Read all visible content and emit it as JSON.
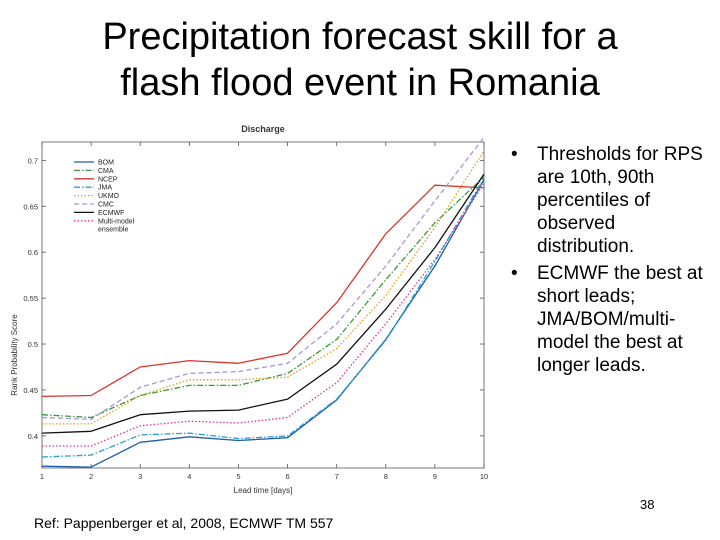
{
  "slide": {
    "title_line1": "Precipitation forecast skill for a",
    "title_line2": "flash flood event in Romania",
    "bullets": [
      "Thresholds for RPS are 10th, 90th percentiles of observed distribution.",
      "ECMWF the best at short leads; JMA/BOM/multi-model the best at longer leads."
    ],
    "bullet_symbol": "•",
    "page_number": "38",
    "reference": "Ref: Pappenberger et al, 2008, ECMWF TM 557"
  },
  "chart_data": {
    "type": "line",
    "title": "Discharge",
    "xlabel": "Lead time [days]",
    "ylabel": "Rank Probability Score",
    "x": [
      1,
      2,
      3,
      4,
      5,
      6,
      7,
      8,
      9,
      10
    ],
    "xlim": [
      1,
      10
    ],
    "ylim": [
      0.365,
      0.72
    ],
    "yticks": [
      0.4,
      0.45,
      0.5,
      0.55,
      0.6,
      0.65,
      0.7
    ],
    "ytick_labels": [
      "0.4",
      "0.45",
      "0.5",
      "0.55",
      "0.6",
      "0.65",
      "0.7"
    ],
    "xtick_labels": [
      "1",
      "2",
      "3",
      "4",
      "5",
      "6",
      "7",
      "8",
      "9",
      "10"
    ],
    "legend_position": "top-left",
    "grid": false,
    "series": [
      {
        "name": "BOM",
        "color": "#1f5fa8",
        "dash": "solid",
        "values": [
          0.367,
          0.366,
          0.393,
          0.399,
          0.395,
          0.398,
          0.439,
          0.505,
          0.585,
          0.679
        ]
      },
      {
        "name": "CMA",
        "color": "#3a9a3a",
        "dash": "dashdot",
        "values": [
          0.423,
          0.42,
          0.444,
          0.455,
          0.455,
          0.468,
          0.505,
          0.57,
          0.632,
          0.682
        ]
      },
      {
        "name": "NCEP",
        "color": "#d9342b",
        "dash": "solid",
        "values": [
          0.443,
          0.444,
          0.475,
          0.482,
          0.479,
          0.49,
          0.545,
          0.62,
          0.673,
          0.67
        ]
      },
      {
        "name": "JMA",
        "color": "#2a9fd6",
        "dash": "dashdot",
        "values": [
          0.377,
          0.379,
          0.401,
          0.403,
          0.397,
          0.4,
          0.44,
          0.504,
          0.59,
          0.681
        ]
      },
      {
        "name": "UKMO",
        "color": "#e69c14",
        "dash": "dotted",
        "values": [
          0.413,
          0.413,
          0.444,
          0.461,
          0.461,
          0.464,
          0.495,
          0.553,
          0.627,
          0.71
        ]
      },
      {
        "name": "CMC",
        "color": "#a897d6",
        "dash": "dashed",
        "values": [
          0.42,
          0.418,
          0.453,
          0.468,
          0.47,
          0.479,
          0.522,
          0.585,
          0.656,
          0.725
        ]
      },
      {
        "name": "ECMWF",
        "color": "#111111",
        "dash": "solid",
        "values": [
          0.403,
          0.405,
          0.423,
          0.427,
          0.428,
          0.44,
          0.478,
          0.538,
          0.605,
          0.685
        ]
      },
      {
        "name": "Multi-model ensemble",
        "color": "#e0318f",
        "dash": "dotted",
        "values": [
          0.389,
          0.389,
          0.411,
          0.416,
          0.414,
          0.42,
          0.458,
          0.522,
          0.592,
          0.675
        ]
      }
    ]
  }
}
